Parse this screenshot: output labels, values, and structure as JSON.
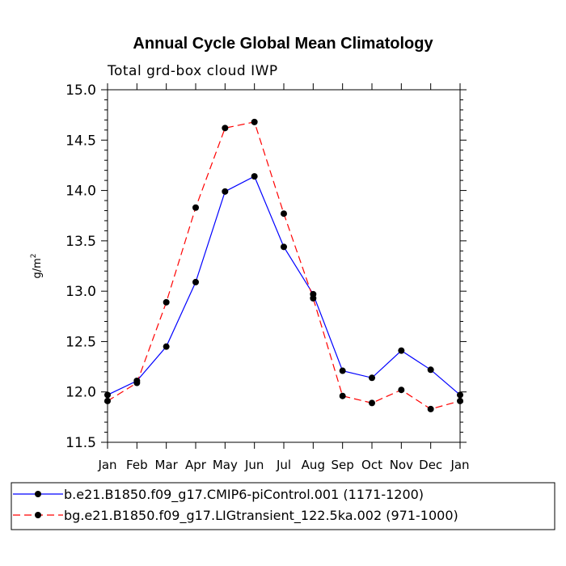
{
  "chart_data": {
    "type": "line",
    "title": "Annual Cycle Global Mean Climatology",
    "subtitle": "Total grd-box cloud IWP",
    "ylabel": "g/m",
    "ylabel_sup": "2",
    "xlabel": "",
    "categories": [
      "Jan",
      "Feb",
      "Mar",
      "Apr",
      "May",
      "Jun",
      "Jul",
      "Aug",
      "Sep",
      "Oct",
      "Nov",
      "Dec",
      "Jan"
    ],
    "ylim": [
      11.5,
      15.0
    ],
    "yticks": [
      "11.5",
      "12.0",
      "12.5",
      "13.0",
      "13.5",
      "14.0",
      "14.5",
      "15.0"
    ],
    "grid": false,
    "legend_position": "bottom",
    "series": [
      {
        "name": "b.e21.B1850.f09_g17.CMIP6-piControl.001 (1171-1200)",
        "color": "#0000ff",
        "style": "solid",
        "values": [
          11.97,
          12.11,
          12.45,
          13.09,
          13.99,
          14.14,
          13.44,
          12.97,
          12.21,
          12.14,
          12.41,
          12.22,
          11.97
        ]
      },
      {
        "name": "bg.e21.B1850.f09_g17.LIGtransient_122.5ka.002 (971-1000)",
        "color": "#ff0000",
        "style": "dashed",
        "values": [
          11.91,
          12.09,
          12.89,
          13.83,
          14.62,
          14.68,
          13.77,
          12.93,
          11.96,
          11.89,
          12.02,
          11.83,
          11.91
        ]
      }
    ]
  }
}
